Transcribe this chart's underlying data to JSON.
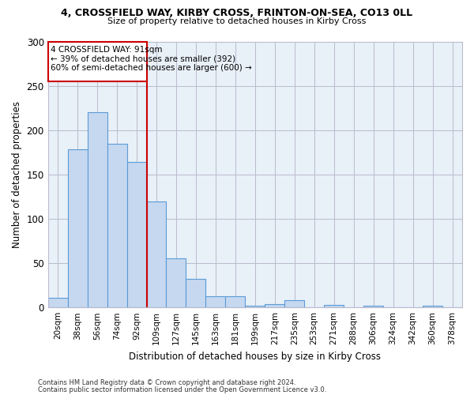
{
  "title_line1": "4, CROSSFIELD WAY, KIRBY CROSS, FRINTON-ON-SEA, CO13 0LL",
  "title_line2": "Size of property relative to detached houses in Kirby Cross",
  "xlabel": "Distribution of detached houses by size in Kirby Cross",
  "ylabel": "Number of detached properties",
  "categories": [
    "20sqm",
    "38sqm",
    "56sqm",
    "74sqm",
    "92sqm",
    "109sqm",
    "127sqm",
    "145sqm",
    "163sqm",
    "181sqm",
    "199sqm",
    "217sqm",
    "235sqm",
    "253sqm",
    "271sqm",
    "288sqm",
    "306sqm",
    "324sqm",
    "342sqm",
    "360sqm",
    "378sqm"
  ],
  "values": [
    11,
    178,
    220,
    185,
    164,
    120,
    55,
    32,
    13,
    13,
    2,
    4,
    8,
    0,
    3,
    0,
    2,
    0,
    0,
    2,
    0
  ],
  "bar_color": "#c5d8f0",
  "bar_edge_color": "#5b9bd5",
  "vline_index": 4,
  "annotation_title": "4 CROSSFIELD WAY: 91sqm",
  "annotation_line2": "← 39% of detached houses are smaller (392)",
  "annotation_line3": "60% of semi-detached houses are larger (600) →",
  "vline_color": "#cc0000",
  "box_edge_color": "#cc0000",
  "ylim": [
    0,
    300
  ],
  "yticks": [
    0,
    50,
    100,
    150,
    200,
    250,
    300
  ],
  "footer_line1": "Contains HM Land Registry data © Crown copyright and database right 2024.",
  "footer_line2": "Contains public sector information licensed under the Open Government Licence v3.0.",
  "bg_color": "#ffffff",
  "plot_bg_color": "#e8f0f8",
  "grid_color": "#bbbbcc"
}
